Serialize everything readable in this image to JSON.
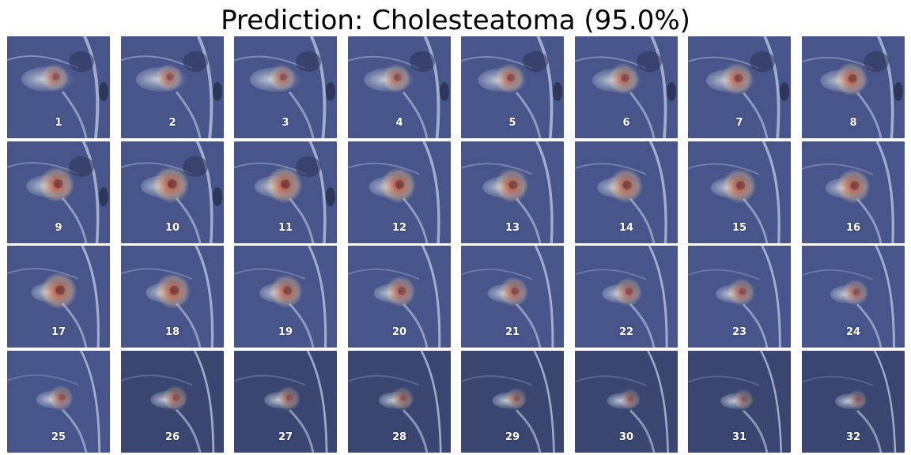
{
  "title": "Prediction: Cholesteatoma (95.0%)",
  "grid": {
    "rows": 4,
    "cols": 8
  },
  "slices": [
    {
      "label": "1",
      "heat": 0.55
    },
    {
      "label": "2",
      "heat": 0.55
    },
    {
      "label": "3",
      "heat": 0.55
    },
    {
      "label": "4",
      "heat": 0.6
    },
    {
      "label": "5",
      "heat": 0.65
    },
    {
      "label": "6",
      "heat": 0.7
    },
    {
      "label": "7",
      "heat": 0.75
    },
    {
      "label": "8",
      "heat": 0.8
    },
    {
      "label": "9",
      "heat": 0.9
    },
    {
      "label": "10",
      "heat": 0.95
    },
    {
      "label": "11",
      "heat": 0.95
    },
    {
      "label": "12",
      "heat": 0.9
    },
    {
      "label": "13",
      "heat": 0.85
    },
    {
      "label": "14",
      "heat": 0.85
    },
    {
      "label": "15",
      "heat": 0.85
    },
    {
      "label": "16",
      "heat": 0.85
    },
    {
      "label": "17",
      "heat": 0.95
    },
    {
      "label": "18",
      "heat": 0.9
    },
    {
      "label": "19",
      "heat": 0.8
    },
    {
      "label": "20",
      "heat": 0.7
    },
    {
      "label": "21",
      "heat": 0.65
    },
    {
      "label": "22",
      "heat": 0.6
    },
    {
      "label": "23",
      "heat": 0.55
    },
    {
      "label": "24",
      "heat": 0.5
    },
    {
      "label": "25",
      "heat": 0.45
    },
    {
      "label": "26",
      "heat": 0.45
    },
    {
      "label": "27",
      "heat": 0.4
    },
    {
      "label": "28",
      "heat": 0.35
    },
    {
      "label": "29",
      "heat": 0.3
    },
    {
      "label": "30",
      "heat": 0.25
    },
    {
      "label": "31",
      "heat": 0.25
    },
    {
      "label": "32",
      "heat": 0.2
    }
  ]
}
